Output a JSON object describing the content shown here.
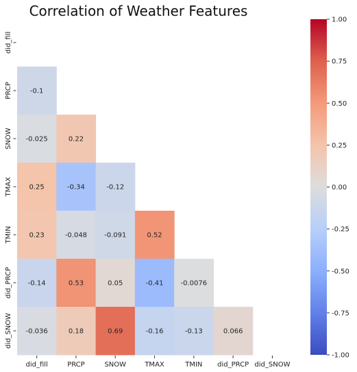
{
  "chart_data": {
    "type": "heatmap",
    "title": "Correlation of Weather Features",
    "variables": [
      "did_fill",
      "PRCP",
      "SNOW",
      "TMAX",
      "TMIN",
      "did_PRCP",
      "did_SNOW"
    ],
    "mask": "upper-triangle-including-diagonal",
    "cells": [
      {
        "row": "PRCP",
        "col": "did_fill",
        "value": -0.1,
        "label": "-0.1"
      },
      {
        "row": "SNOW",
        "col": "did_fill",
        "value": -0.025,
        "label": "-0.025"
      },
      {
        "row": "SNOW",
        "col": "PRCP",
        "value": 0.22,
        "label": "0.22"
      },
      {
        "row": "TMAX",
        "col": "did_fill",
        "value": 0.25,
        "label": "0.25"
      },
      {
        "row": "TMAX",
        "col": "PRCP",
        "value": -0.34,
        "label": "-0.34"
      },
      {
        "row": "TMAX",
        "col": "SNOW",
        "value": -0.12,
        "label": "-0.12"
      },
      {
        "row": "TMIN",
        "col": "did_fill",
        "value": 0.23,
        "label": "0.23"
      },
      {
        "row": "TMIN",
        "col": "PRCP",
        "value": -0.048,
        "label": "-0.048"
      },
      {
        "row": "TMIN",
        "col": "SNOW",
        "value": -0.091,
        "label": "-0.091"
      },
      {
        "row": "TMIN",
        "col": "TMAX",
        "value": 0.52,
        "label": "0.52"
      },
      {
        "row": "did_PRCP",
        "col": "did_fill",
        "value": -0.14,
        "label": "-0.14"
      },
      {
        "row": "did_PRCP",
        "col": "PRCP",
        "value": 0.53,
        "label": "0.53"
      },
      {
        "row": "did_PRCP",
        "col": "SNOW",
        "value": 0.05,
        "label": "0.05"
      },
      {
        "row": "did_PRCP",
        "col": "TMAX",
        "value": -0.41,
        "label": "-0.41"
      },
      {
        "row": "did_PRCP",
        "col": "TMIN",
        "value": -0.0076,
        "label": "-0.0076"
      },
      {
        "row": "did_SNOW",
        "col": "did_fill",
        "value": -0.036,
        "label": "-0.036"
      },
      {
        "row": "did_SNOW",
        "col": "PRCP",
        "value": 0.18,
        "label": "0.18"
      },
      {
        "row": "did_SNOW",
        "col": "SNOW",
        "value": 0.69,
        "label": "0.69"
      },
      {
        "row": "did_SNOW",
        "col": "TMAX",
        "value": -0.16,
        "label": "-0.16"
      },
      {
        "row": "did_SNOW",
        "col": "TMIN",
        "value": -0.13,
        "label": "-0.13"
      },
      {
        "row": "did_SNOW",
        "col": "did_PRCP",
        "value": 0.066,
        "label": "0.066"
      }
    ],
    "colorbar": {
      "colormap": "coolwarm",
      "vmin": -1.0,
      "vmax": 1.0,
      "ticks": [
        "-1.00",
        "-0.75",
        "-0.50",
        "-0.25",
        "0.00",
        "0.25",
        "0.50",
        "0.75",
        "1.00"
      ]
    },
    "grid": false,
    "legend": "colorbar-right"
  }
}
